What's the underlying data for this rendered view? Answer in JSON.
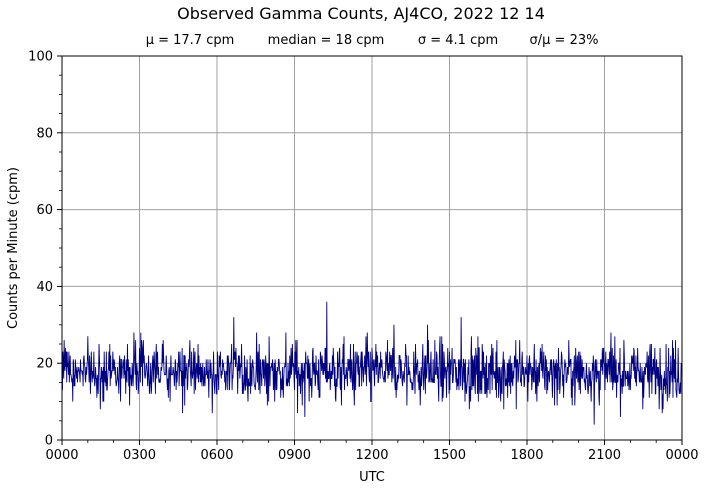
{
  "chart_data": {
    "type": "line",
    "title": "Observed Gamma Counts, AJ4CO, 2022 12 14",
    "subtitle_stats": [
      "μ = 17.7 cpm",
      "median = 18 cpm",
      "σ = 4.1 cpm",
      "σ/μ = 23%"
    ],
    "xlabel": "UTC",
    "ylabel": "Counts per Minute (cpm)",
    "x_tick_labels": [
      "0000",
      "0300",
      "0600",
      "0900",
      "1200",
      "1500",
      "1800",
      "2100",
      "0000"
    ],
    "y_tick_labels": [
      "0",
      "20",
      "40",
      "60",
      "80",
      "100"
    ],
    "ylim": [
      0,
      100
    ],
    "xlim_hours": [
      0,
      24
    ],
    "grid": true,
    "series": [
      {
        "color": "#000080",
        "sample_interval_minutes": 1,
        "values_summary": {
          "mean": 17.7,
          "median": 18,
          "std": 4.1,
          "count": 1440
        },
        "notable_points": [
          {
            "x_hour": 6.65,
            "y": 32
          },
          {
            "x_hour": 10.25,
            "y": 36
          },
          {
            "x_hour": 12.85,
            "y": 30
          },
          {
            "x_hour": 14.15,
            "y": 30
          },
          {
            "x_hour": 15.45,
            "y": 32
          },
          {
            "x_hour": 20.6,
            "y": 4
          }
        ]
      }
    ]
  }
}
